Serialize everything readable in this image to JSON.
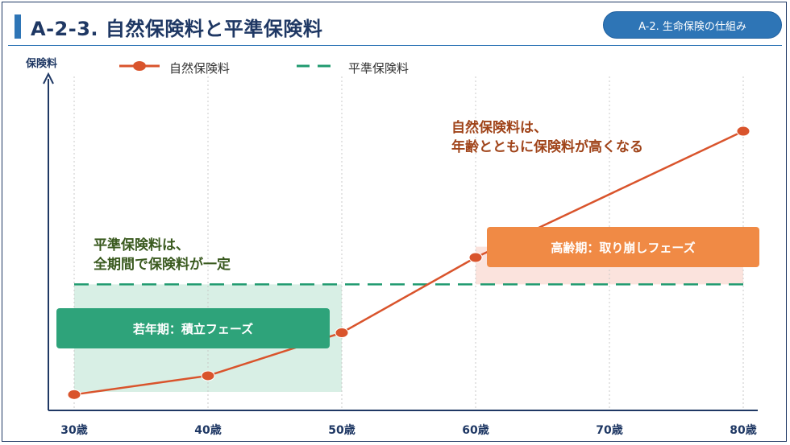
{
  "header": {
    "title": "A-2-3. 自然保険料と平準保険料",
    "badge": "A-2. 生命保険の仕組み"
  },
  "chart_data": {
    "type": "line",
    "ylabel": "保険料",
    "xlabel": "",
    "categories": [
      "30歳",
      "40歳",
      "50歳",
      "60歳",
      "70歳",
      "80歳"
    ],
    "x": [
      30,
      40,
      50,
      60,
      70,
      80
    ],
    "xlim": [
      30,
      80
    ],
    "ylim": [
      0,
      100
    ],
    "grid": "vertical-dotted",
    "legend_position": "top",
    "series": [
      {
        "name": "自然保険料",
        "style": "line-with-markers",
        "color": "#d9542c",
        "points": [
          [
            30,
            2
          ],
          [
            40,
            9
          ],
          [
            50,
            25
          ],
          [
            60,
            53
          ],
          [
            80,
            100
          ]
        ]
      },
      {
        "name": "平準保険料",
        "style": "dashed",
        "color": "#1f9a6f",
        "points": [
          [
            30,
            43
          ],
          [
            80,
            43
          ]
        ]
      }
    ],
    "phases": [
      {
        "label": "若年期：積立フェーズ",
        "x_range": [
          30,
          50
        ],
        "y_range": [
          3,
          43
        ],
        "color": "#2ea37a",
        "fill": "#d8efe5"
      },
      {
        "label": "高齢期：取り崩しフェーズ",
        "x_range": [
          60,
          80
        ],
        "y_range": [
          43,
          57
        ],
        "color": "#f08a45",
        "fill": "#fbe3dd"
      }
    ],
    "annotations": [
      {
        "text": [
          "平準保険料は、",
          "全期間で保険料が一定"
        ],
        "color": "#3a5a1f"
      },
      {
        "text": [
          "自然保険料は、",
          "年齢とともに保険料が高くなる"
        ],
        "color": "#a0441a"
      }
    ]
  }
}
